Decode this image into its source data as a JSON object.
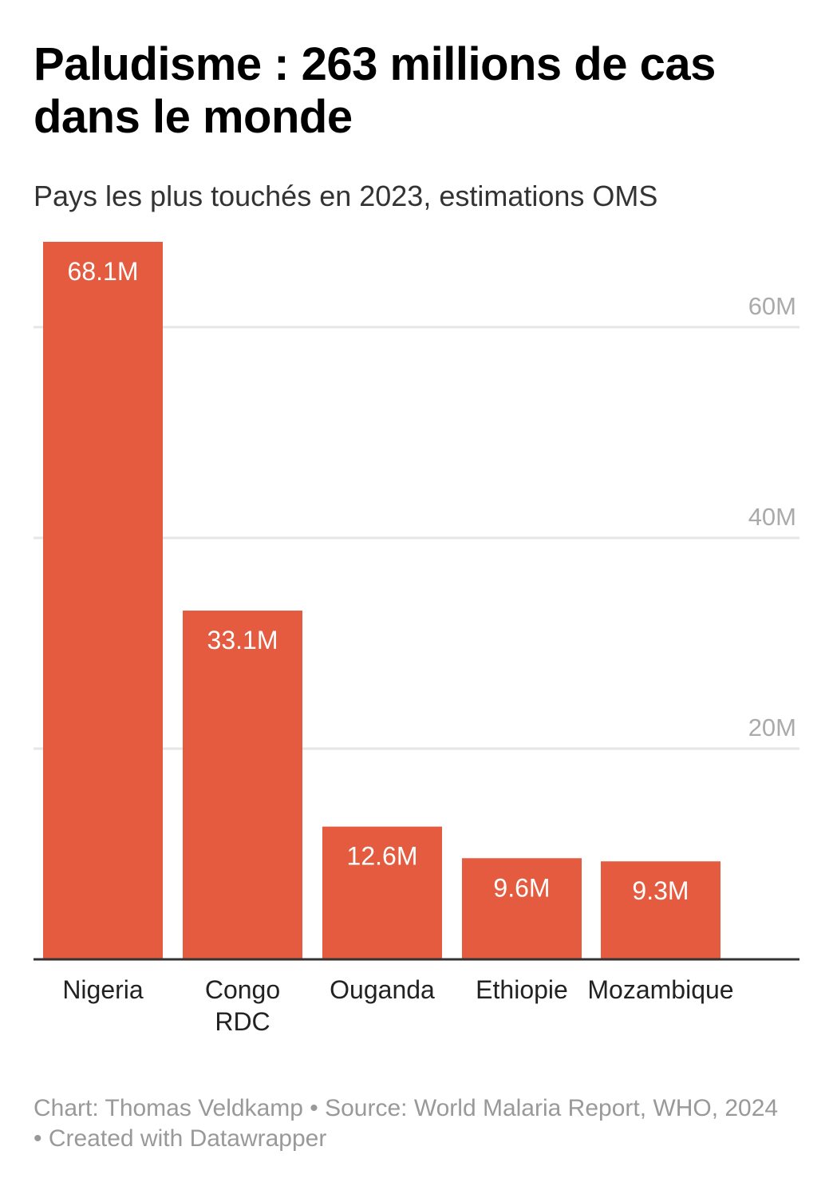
{
  "title": "Paludisme : 263 millions de cas dans le monde",
  "subtitle": "Pays les plus touchés en 2023, estimations OMS",
  "footer": "Chart: Thomas Veldkamp • Source: World Malaria Report, WHO, 2024 • Created with Datawrapper",
  "colors": {
    "bar": "#e45b3f",
    "grid": "#e6e6e6",
    "axis": "#333333",
    "tick_label": "#aaaaaa",
    "bar_label": "#ffffff"
  },
  "chart_data": {
    "type": "bar",
    "categories": [
      [
        "Nigeria"
      ],
      [
        "Congo",
        "RDC"
      ],
      [
        "Ouganda"
      ],
      [
        "Ethiopie"
      ],
      [
        "Mozambique"
      ]
    ],
    "values": [
      68.1,
      33.1,
      12.6,
      9.6,
      9.3
    ],
    "value_labels": [
      "68.1M",
      "33.1M",
      "12.6M",
      "9.6M",
      "9.3M"
    ],
    "unit": "millions",
    "ylim": [
      0,
      68.1
    ],
    "yticks": [
      20,
      40,
      60
    ],
    "ytick_labels": [
      "20M",
      "40M",
      "60M"
    ],
    "grid": true,
    "ytick_position": "right"
  }
}
